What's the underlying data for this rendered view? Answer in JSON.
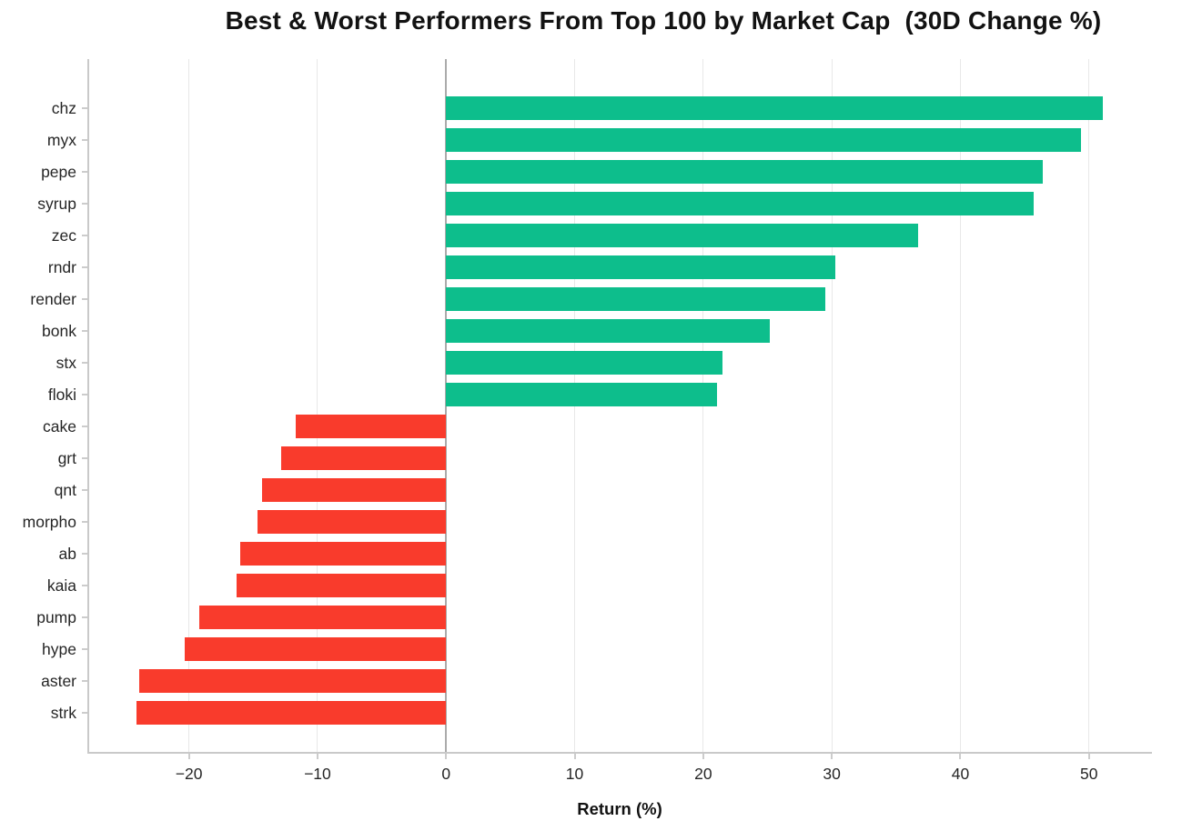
{
  "title": "Best & Worst Performers From Top 100 by Market Cap  (30D Change %)",
  "chart_data": {
    "type": "bar",
    "orientation": "horizontal",
    "title": "Best & Worst Performers From Top 100 by Market Cap  (30D Change %)",
    "xlabel": "Return (%)",
    "ylabel": "",
    "grid": true,
    "legend": false,
    "xlim": [
      -27.9,
      54.9
    ],
    "x_ticks": [
      -20,
      -10,
      0,
      10,
      20,
      30,
      40,
      50
    ],
    "x_tick_labels": [
      "−20",
      "−10",
      "0",
      "10",
      "20",
      "30",
      "40",
      "50"
    ],
    "categories": [
      "chz",
      "myx",
      "pepe",
      "syrup",
      "zec",
      "rndr",
      "render",
      "bonk",
      "stx",
      "floki",
      "cake",
      "grt",
      "qnt",
      "morpho",
      "ab",
      "kaia",
      "pump",
      "hype",
      "aster",
      "strk"
    ],
    "values": [
      51.1,
      49.4,
      46.4,
      45.7,
      36.7,
      30.3,
      29.5,
      25.2,
      21.5,
      21.1,
      -11.7,
      -12.8,
      -14.3,
      -14.7,
      -16.0,
      -16.3,
      -19.2,
      -20.3,
      -23.9,
      -24.1
    ],
    "colors": {
      "positive": "#0dbe8c",
      "negative": "#f93b2c",
      "gridline": "#e8e8e8",
      "zero_line": "#ababab",
      "spine": "#c9c9c9",
      "text": "#262626"
    }
  }
}
